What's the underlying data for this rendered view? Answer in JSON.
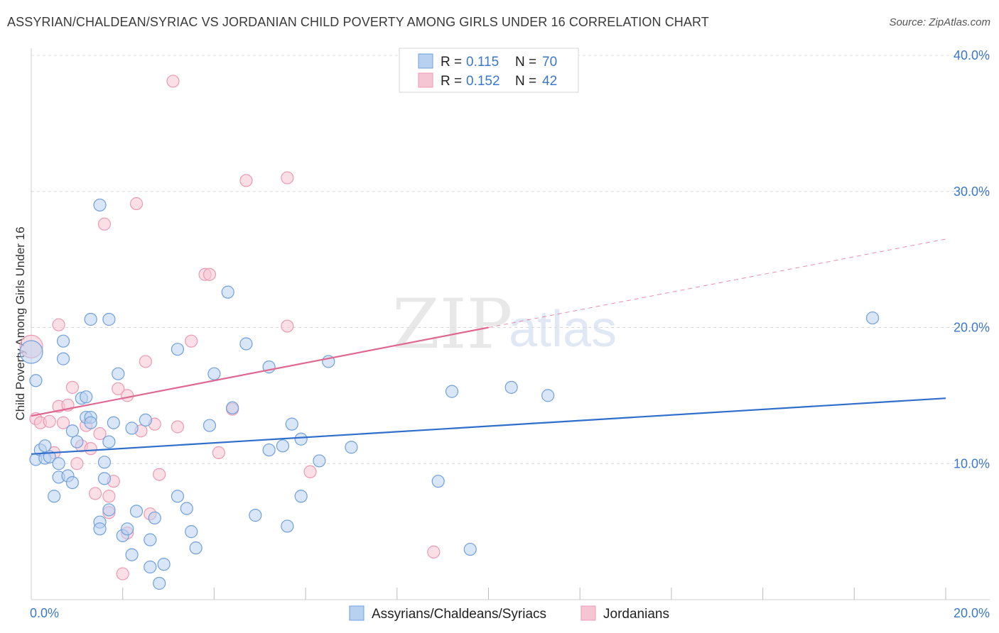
{
  "title": "ASSYRIAN/CHALDEAN/SYRIAC VS JORDANIAN CHILD POVERTY AMONG GIRLS UNDER 16 CORRELATION CHART",
  "source": "Source: ZipAtlas.com",
  "watermark": {
    "zip": "ZIP",
    "atlas": "atlas"
  },
  "legend_top": {
    "r_label": "R =",
    "n_label": "N =",
    "rows": [
      {
        "r": "0.115",
        "n": "70"
      },
      {
        "r": "0.152",
        "n": "42"
      }
    ]
  },
  "chart_data": {
    "type": "scatter",
    "title": "ASSYRIAN/CHALDEAN/SYRIAC VS JORDANIAN CHILD POVERTY AMONG GIRLS UNDER 16 CORRELATION CHART",
    "xlabel": "",
    "ylabel": "Child Poverty Among Girls Under 16",
    "xlim": [
      0,
      20
    ],
    "ylim": [
      0,
      40.5
    ],
    "x_ticks": [
      "0.0%",
      "20.0%"
    ],
    "y_ticks": [
      {
        "value": 10,
        "label": "10.0%"
      },
      {
        "value": 20,
        "label": "20.0%"
      },
      {
        "value": 30,
        "label": "30.0%"
      },
      {
        "value": 40,
        "label": "40.0%"
      }
    ],
    "grid": true,
    "legend_position": "top-center",
    "series": [
      {
        "name": "Assyrians/Chaldeans/Syriacs",
        "color": "#6fa0dc",
        "fill": "#b9d1f0",
        "trend": {
          "x": [
            0,
            20
          ],
          "y": [
            10.7,
            14.8
          ],
          "color": "#2f6fcc",
          "dashed_from": null
        },
        "points": [
          [
            0.0,
            18.2
          ],
          [
            0.1,
            16.1
          ],
          [
            0.1,
            10.3
          ],
          [
            0.2,
            11.0
          ],
          [
            0.3,
            10.4
          ],
          [
            0.3,
            11.3
          ],
          [
            0.4,
            10.5
          ],
          [
            0.5,
            7.6
          ],
          [
            0.6,
            9.0
          ],
          [
            0.6,
            10.0
          ],
          [
            0.7,
            17.7
          ],
          [
            0.7,
            19.0
          ],
          [
            0.8,
            9.1
          ],
          [
            0.9,
            8.6
          ],
          [
            0.9,
            12.4
          ],
          [
            1.0,
            11.6
          ],
          [
            1.1,
            14.8
          ],
          [
            1.2,
            14.9
          ],
          [
            1.2,
            13.4
          ],
          [
            1.3,
            13.4
          ],
          [
            1.3,
            20.6
          ],
          [
            1.3,
            13.0
          ],
          [
            1.5,
            5.7
          ],
          [
            1.5,
            5.2
          ],
          [
            1.5,
            29.0
          ],
          [
            1.6,
            10.1
          ],
          [
            1.6,
            8.9
          ],
          [
            1.7,
            6.6
          ],
          [
            1.7,
            11.6
          ],
          [
            1.7,
            20.6
          ],
          [
            1.8,
            13.0
          ],
          [
            1.9,
            16.6
          ],
          [
            2.0,
            4.7
          ],
          [
            2.1,
            5.2
          ],
          [
            2.2,
            3.3
          ],
          [
            2.2,
            12.6
          ],
          [
            2.3,
            6.5
          ],
          [
            2.5,
            13.2
          ],
          [
            2.6,
            4.4
          ],
          [
            2.6,
            2.4
          ],
          [
            2.7,
            6.0
          ],
          [
            2.8,
            1.2
          ],
          [
            2.9,
            2.6
          ],
          [
            3.2,
            18.4
          ],
          [
            3.2,
            7.6
          ],
          [
            3.4,
            6.7
          ],
          [
            3.5,
            5.0
          ],
          [
            3.6,
            3.8
          ],
          [
            3.9,
            12.8
          ],
          [
            4.0,
            16.6
          ],
          [
            4.3,
            22.6
          ],
          [
            4.4,
            14.1
          ],
          [
            4.7,
            18.8
          ],
          [
            4.9,
            6.2
          ],
          [
            5.2,
            11.0
          ],
          [
            5.2,
            17.1
          ],
          [
            5.5,
            11.3
          ],
          [
            5.6,
            5.4
          ],
          [
            5.7,
            12.9
          ],
          [
            5.9,
            11.8
          ],
          [
            5.9,
            7.6
          ],
          [
            6.3,
            10.2
          ],
          [
            6.5,
            17.5
          ],
          [
            7.0,
            11.2
          ],
          [
            8.9,
            8.7
          ],
          [
            9.2,
            15.3
          ],
          [
            9.6,
            3.7
          ],
          [
            10.5,
            15.6
          ],
          [
            11.3,
            15.0
          ],
          [
            18.4,
            20.7
          ]
        ]
      },
      {
        "name": "Jordanians",
        "color": "#ec9ab4",
        "fill": "#f6c5d4",
        "trend": {
          "x": [
            0,
            20
          ],
          "y": [
            13.5,
            26.5
          ],
          "color": "#e06890",
          "dashed_from": 10
        },
        "points": [
          [
            0.0,
            18.6
          ],
          [
            0.1,
            13.3
          ],
          [
            0.2,
            13.0
          ],
          [
            0.4,
            13.1
          ],
          [
            0.5,
            10.8
          ],
          [
            0.6,
            14.2
          ],
          [
            0.6,
            20.2
          ],
          [
            0.7,
            13.0
          ],
          [
            0.8,
            14.3
          ],
          [
            0.9,
            15.6
          ],
          [
            1.0,
            10.0
          ],
          [
            1.1,
            11.3
          ],
          [
            1.2,
            12.8
          ],
          [
            1.3,
            11.1
          ],
          [
            1.4,
            7.8
          ],
          [
            1.5,
            12.2
          ],
          [
            1.6,
            27.6
          ],
          [
            1.7,
            6.4
          ],
          [
            1.7,
            7.6
          ],
          [
            1.8,
            8.7
          ],
          [
            1.9,
            15.5
          ],
          [
            2.0,
            1.9
          ],
          [
            2.1,
            15.0
          ],
          [
            2.1,
            4.9
          ],
          [
            2.3,
            29.1
          ],
          [
            2.4,
            12.4
          ],
          [
            2.5,
            17.5
          ],
          [
            2.6,
            6.3
          ],
          [
            2.7,
            12.9
          ],
          [
            2.8,
            9.2
          ],
          [
            3.2,
            12.7
          ],
          [
            3.5,
            19.0
          ],
          [
            3.8,
            23.9
          ],
          [
            3.9,
            23.9
          ],
          [
            4.1,
            10.8
          ],
          [
            4.4,
            14.0
          ],
          [
            4.7,
            30.8
          ],
          [
            5.6,
            31.0
          ],
          [
            5.6,
            20.1
          ],
          [
            6.1,
            9.4
          ],
          [
            8.8,
            3.5
          ],
          [
            3.1,
            38.1
          ]
        ]
      }
    ]
  }
}
